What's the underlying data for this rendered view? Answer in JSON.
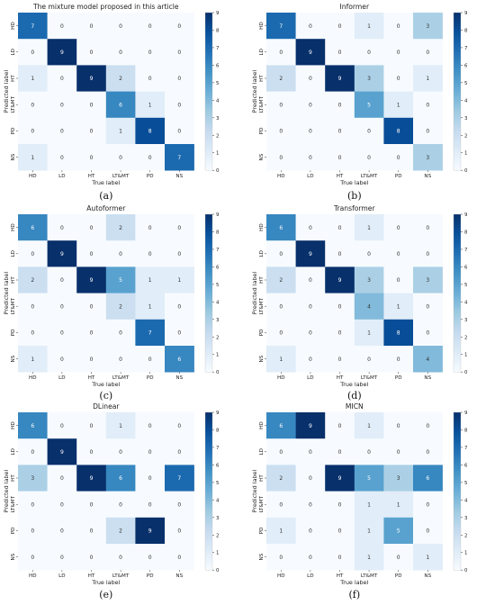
{
  "figure": {
    "panel_letters": [
      "(a)",
      "(b)",
      "(c)",
      "(d)",
      "(e)",
      "(f)"
    ]
  },
  "colorscale": {
    "stops": [
      "#f7fbff",
      "#deebf7",
      "#c6dbef",
      "#9ecae1",
      "#6baed6",
      "#4292c6",
      "#2171b5",
      "#08519c",
      "#08306b"
    ],
    "min": 0,
    "max": 9,
    "ticks": [
      0,
      1,
      2,
      3,
      4,
      5,
      6,
      7,
      8,
      9
    ]
  },
  "chart_data": [
    {
      "type": "heatmap",
      "title": "The mixture model proposed in this article",
      "xlabel": "True label",
      "ylabel": "Predicted label",
      "x_categories": [
        "HD",
        "LD",
        "HT",
        "LT&MT",
        "PD",
        "NS"
      ],
      "y_categories": [
        "HD",
        "LD",
        "HT",
        "LT&MT",
        "PD",
        "NS"
      ],
      "values": [
        [
          7,
          0,
          0,
          0,
          0,
          0
        ],
        [
          0,
          9,
          0,
          0,
          0,
          0
        ],
        [
          1,
          0,
          9,
          2,
          0,
          0
        ],
        [
          0,
          0,
          0,
          6,
          1,
          0
        ],
        [
          0,
          0,
          0,
          1,
          8,
          0
        ],
        [
          1,
          0,
          0,
          0,
          0,
          7
        ]
      ],
      "colorbar_range": [
        0,
        9
      ]
    },
    {
      "type": "heatmap",
      "title": "Informer",
      "xlabel": "True label",
      "ylabel": "Predicted label",
      "x_categories": [
        "HD",
        "LD",
        "HT",
        "LT&MT",
        "PD",
        "NS"
      ],
      "y_categories": [
        "HD",
        "LD",
        "HT",
        "LT&MT",
        "PD",
        "NS"
      ],
      "values": [
        [
          7,
          0,
          0,
          1,
          0,
          3
        ],
        [
          0,
          9,
          0,
          0,
          0,
          0
        ],
        [
          2,
          0,
          9,
          3,
          0,
          1
        ],
        [
          0,
          0,
          0,
          5,
          1,
          0
        ],
        [
          0,
          0,
          0,
          0,
          8,
          0
        ],
        [
          0,
          0,
          0,
          0,
          0,
          3
        ]
      ],
      "colorbar_range": [
        0,
        9
      ]
    },
    {
      "type": "heatmap",
      "title": "Autoformer",
      "xlabel": "True label",
      "ylabel": "Predicted label",
      "x_categories": [
        "HD",
        "LD",
        "HT",
        "LT&MT",
        "PD",
        "NS"
      ],
      "y_categories": [
        "HD",
        "LD",
        "HT",
        "LT&MT",
        "PD",
        "NS"
      ],
      "values": [
        [
          6,
          0,
          0,
          2,
          0,
          0
        ],
        [
          0,
          9,
          0,
          0,
          0,
          0
        ],
        [
          2,
          0,
          9,
          5,
          1,
          1
        ],
        [
          0,
          0,
          0,
          2,
          1,
          0
        ],
        [
          0,
          0,
          0,
          0,
          7,
          0
        ],
        [
          1,
          0,
          0,
          0,
          0,
          6
        ]
      ],
      "colorbar_range": [
        0,
        9
      ]
    },
    {
      "type": "heatmap",
      "title": "Transformer",
      "xlabel": "True label",
      "ylabel": "Predicted label",
      "x_categories": [
        "HD",
        "LD",
        "HT",
        "LT&MT",
        "PD",
        "NS"
      ],
      "y_categories": [
        "HD",
        "LD",
        "HT",
        "LT&MT",
        "PD",
        "NS"
      ],
      "values": [
        [
          6,
          0,
          0,
          1,
          0,
          0
        ],
        [
          0,
          9,
          0,
          0,
          0,
          0
        ],
        [
          2,
          0,
          9,
          3,
          0,
          3
        ],
        [
          0,
          0,
          0,
          4,
          1,
          0
        ],
        [
          0,
          0,
          0,
          1,
          8,
          0
        ],
        [
          1,
          0,
          0,
          0,
          0,
          4
        ]
      ],
      "colorbar_range": [
        0,
        9
      ]
    },
    {
      "type": "heatmap",
      "title": "DLinear",
      "xlabel": "True label",
      "ylabel": "Predicted label",
      "x_categories": [
        "HD",
        "LD",
        "HT",
        "LT&MT",
        "PD",
        "NS"
      ],
      "y_categories": [
        "HD",
        "LD",
        "HT",
        "LT&MT",
        "PD",
        "NS"
      ],
      "values": [
        [
          6,
          0,
          0,
          1,
          0,
          0
        ],
        [
          0,
          9,
          0,
          0,
          0,
          0
        ],
        [
          3,
          0,
          9,
          6,
          0,
          7
        ],
        [
          0,
          0,
          0,
          0,
          0,
          0
        ],
        [
          0,
          0,
          0,
          2,
          9,
          0
        ],
        [
          0,
          0,
          0,
          0,
          0,
          0
        ]
      ],
      "colorbar_range": [
        0,
        9
      ]
    },
    {
      "type": "heatmap",
      "title": "MICN",
      "xlabel": "True label",
      "ylabel": "Predicted label",
      "x_categories": [
        "HD",
        "LD",
        "HT",
        "LT&MT",
        "PD",
        "NS"
      ],
      "y_categories": [
        "HD",
        "LD",
        "HT",
        "LT&MT",
        "PD",
        "NS"
      ],
      "values": [
        [
          6,
          9,
          0,
          1,
          0,
          0
        ],
        [
          0,
          0,
          0,
          0,
          0,
          0
        ],
        [
          2,
          0,
          9,
          5,
          3,
          6
        ],
        [
          0,
          0,
          0,
          1,
          1,
          0
        ],
        [
          1,
          0,
          0,
          1,
          5,
          0
        ],
        [
          0,
          0,
          0,
          1,
          0,
          1
        ]
      ],
      "colorbar_range": [
        0,
        9
      ]
    }
  ]
}
